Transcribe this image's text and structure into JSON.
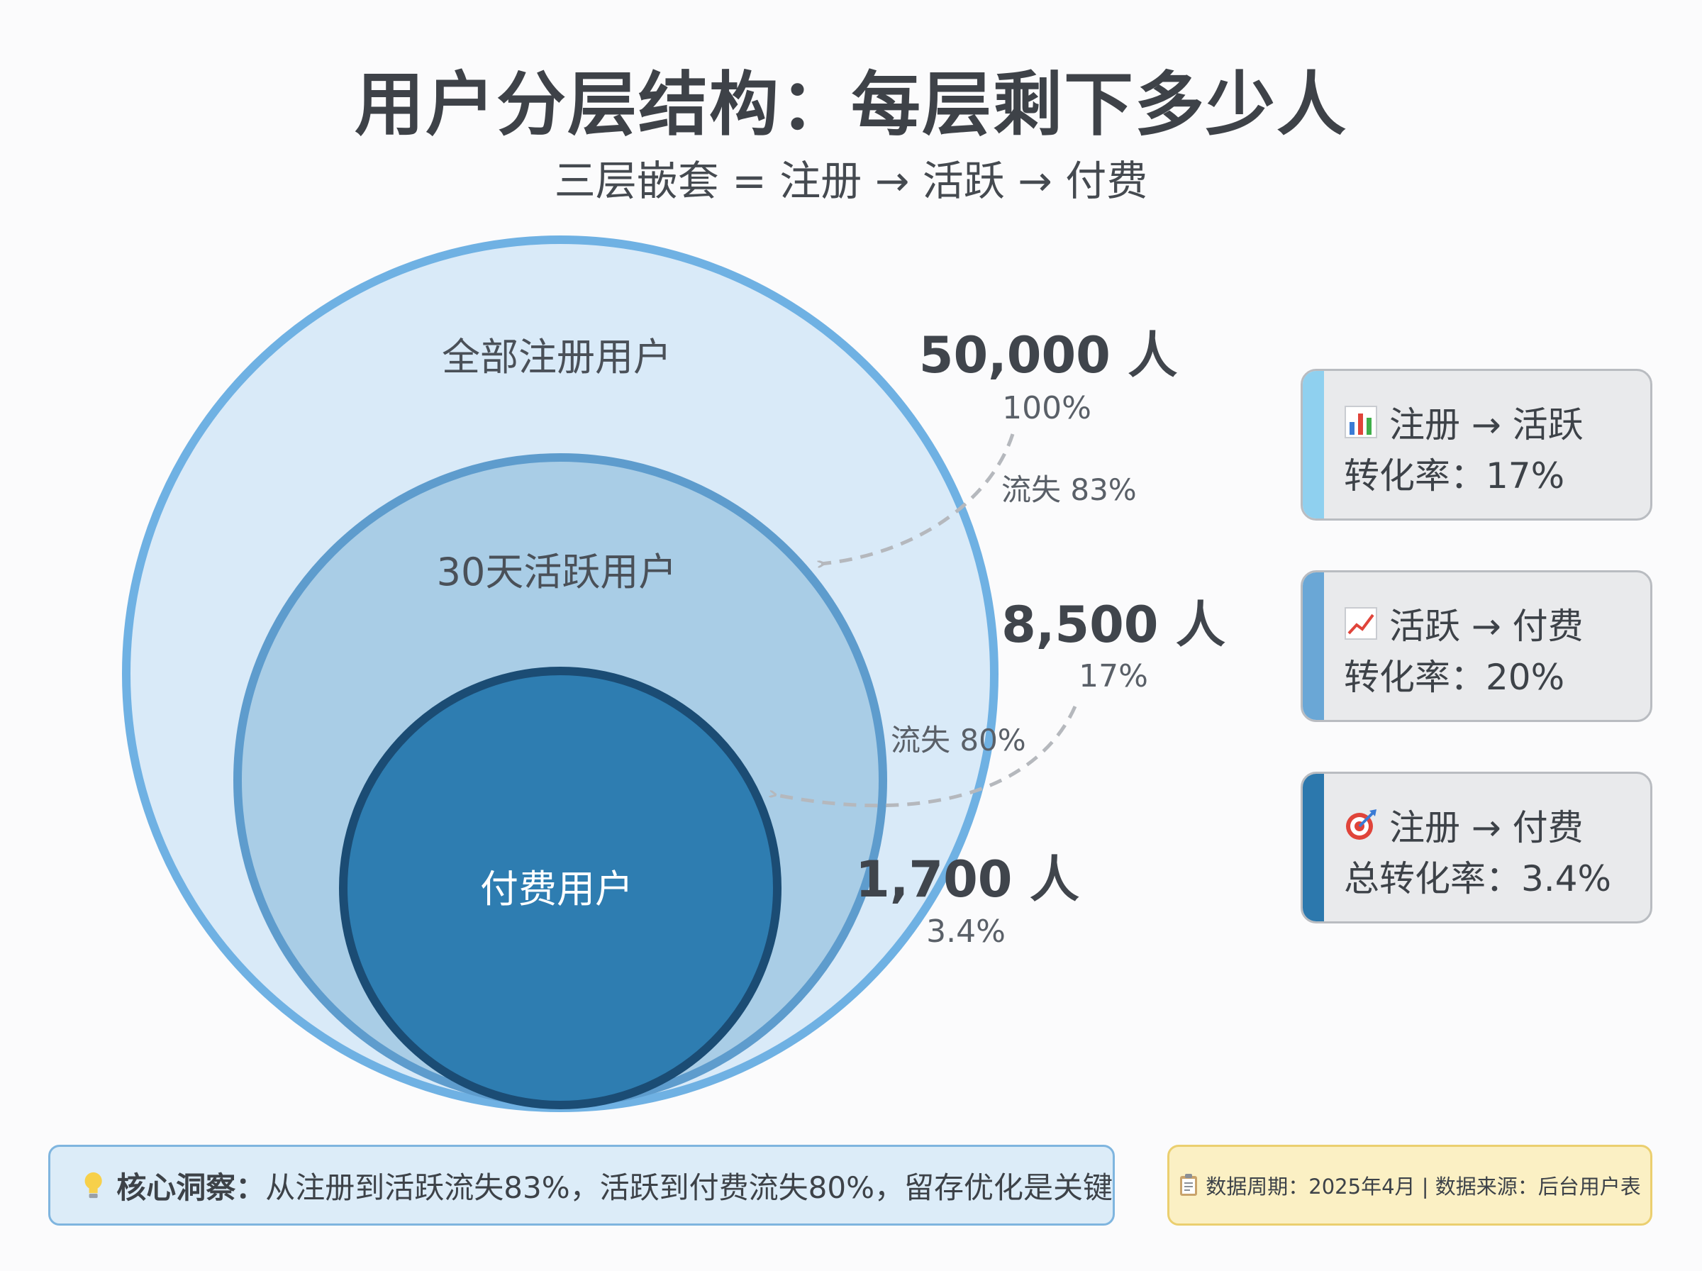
{
  "title": "用户分层结构：每层剩下多少人",
  "subtitle": "三层嵌套 = 注册 → 活跃 → 付费",
  "layers": [
    {
      "name": "全部注册用户",
      "count": "50,000 人",
      "pct": "100%",
      "fill": "#d9eaf8",
      "stroke": "#6fb1e3"
    },
    {
      "name": "30天活跃用户",
      "count": "8,500 人",
      "pct": "17%",
      "fill": "#a9cde6",
      "stroke": "#5e9ccd"
    },
    {
      "name": "付费用户",
      "count": "1,700 人",
      "pct": "3.4%",
      "fill": "#2e7db1",
      "stroke": "#1b4c74"
    }
  ],
  "losses": [
    "流失 83%",
    "流失 80%"
  ],
  "cards": [
    {
      "icon": "bar-chart-icon",
      "title": "注册 → 活跃",
      "rate": "转化率：17%",
      "accent": "#8fd0ef"
    },
    {
      "icon": "trend-up-icon",
      "title": "活跃 → 付费",
      "rate": "转化率：20%",
      "accent": "#6aa7d6"
    },
    {
      "icon": "target-icon",
      "title": "注册 → 付费",
      "rate": "总转化率：3.4%",
      "accent": "#2c78ad"
    }
  ],
  "insight": {
    "icon": "lightbulb-icon",
    "label": "核心洞察：",
    "text": "从注册到活跃流失83%，活跃到付费流失80%，留存优化是关键"
  },
  "footnote": {
    "icon": "clipboard-icon",
    "text": "数据周期：2025年4月 | 数据来源：后台用户表"
  }
}
